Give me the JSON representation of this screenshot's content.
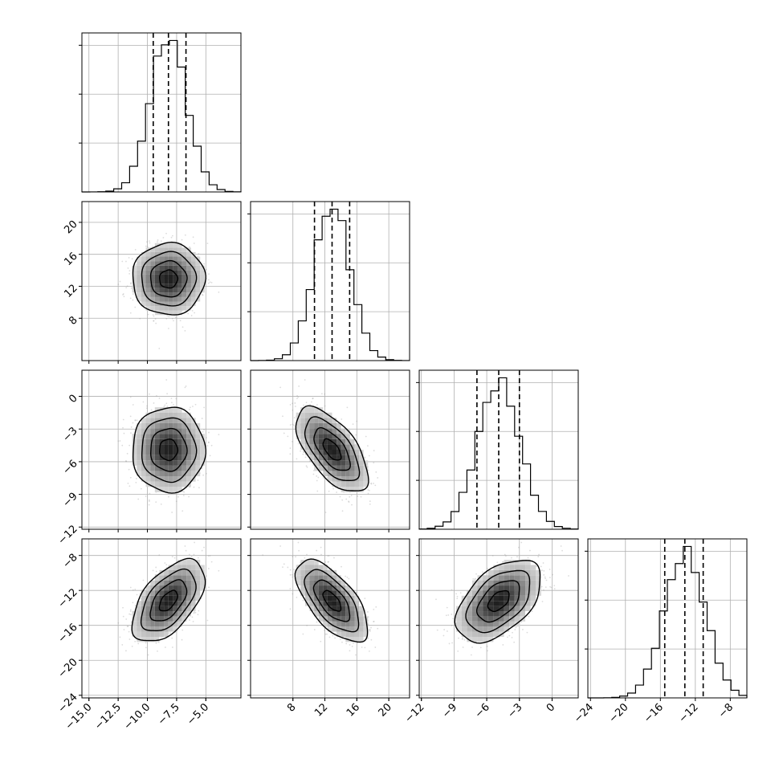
{
  "chart_data": {
    "type": "corner",
    "grid": true,
    "parameters": [
      {
        "mean": -8.2,
        "std": 1.55,
        "range": [
          -15.6,
          -2.0
        ],
        "ticks": [
          -15.0,
          -12.5,
          -10.0,
          -7.5,
          -5.0
        ],
        "tick_labels": [
          "−15.0",
          "−12.5",
          "−10.0",
          "−7.5",
          "−5.0"
        ],
        "quantiles": [
          -9.5,
          -8.2,
          -6.7
        ]
      },
      {
        "mean": 12.9,
        "std": 2.25,
        "range": [
          2.7,
          22.6
        ],
        "ticks": [
          8,
          12,
          16,
          20
        ],
        "tick_labels": [
          "8",
          "12",
          "16",
          "20"
        ],
        "quantiles": [
          10.7,
          12.9,
          15.1
        ]
      },
      {
        "mean": -4.9,
        "std": 1.95,
        "range": [
          -12.2,
          2.4
        ],
        "ticks": [
          -12,
          -9,
          -6,
          -3,
          0
        ],
        "tick_labels": [
          "−12",
          "−9",
          "−6",
          "−3",
          "0"
        ],
        "quantiles": [
          -6.9,
          -4.9,
          -3.0
        ]
      },
      {
        "mean": -13.2,
        "std": 2.35,
        "range": [
          -24.3,
          -6.1
        ],
        "ticks": [
          -24,
          -20,
          -16,
          -12,
          -8
        ],
        "tick_labels": [
          "−24",
          "−20",
          "−16",
          "−12",
          "−8"
        ],
        "quantiles": [
          -15.5,
          -13.2,
          -11.1
        ]
      }
    ],
    "correlations": [
      [
        1.0,
        0.0,
        0.0,
        0.55
      ],
      [
        0.0,
        1.0,
        -0.62,
        -0.65
      ],
      [
        0.0,
        -0.62,
        1.0,
        0.5
      ],
      [
        0.55,
        -0.65,
        0.5,
        1.0
      ]
    ],
    "contour_levels_sigma": [
      0.5,
      1.0,
      1.5,
      2.0
    ],
    "n_scatter_points": 700,
    "hist_bins": 20
  }
}
